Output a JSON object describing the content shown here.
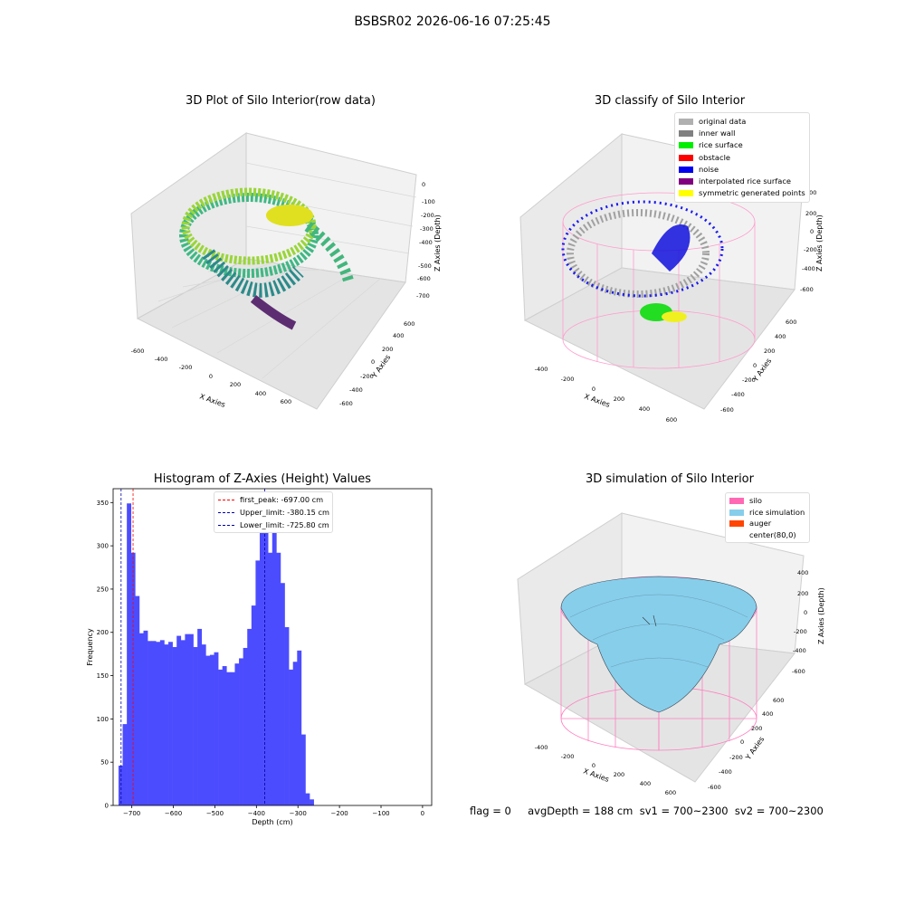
{
  "figure": {
    "suptitle": "BSBSR02 2026-06-16 07:25:45"
  },
  "panels": {
    "raw": {
      "title": "3D Plot of Silo Interior(row data)",
      "xlabel": "X Axies",
      "ylabel": "Y Axies",
      "zlabel": "Z Axies (Depth)",
      "xticks": [
        "-600",
        "-400",
        "-200",
        "0",
        "200",
        "400",
        "600"
      ],
      "yticks": [
        "-600",
        "-400",
        "-200",
        "0",
        "200",
        "400",
        "600"
      ],
      "zticks": [
        "0",
        "-100",
        "-200",
        "-300",
        "-400",
        "-500",
        "-600",
        "-700"
      ]
    },
    "classify": {
      "title": "3D classify of Silo Interior",
      "xlabel": "X Axies",
      "ylabel": "Y Axies",
      "zlabel": "Z Axies (Depth)",
      "xticks": [
        "-400",
        "-200",
        "0",
        "200",
        "400",
        "600"
      ],
      "yticks": [
        "-600",
        "-400",
        "-200",
        "0",
        "200",
        "400",
        "600"
      ],
      "zticks": [
        "400",
        "200",
        "0",
        "-200",
        "-400",
        "-600"
      ],
      "legend": [
        {
          "label": "original data",
          "color": "#b0b0b0"
        },
        {
          "label": "inner wall",
          "color": "#808080"
        },
        {
          "label": "rice surface",
          "color": "#00ee00"
        },
        {
          "label": "obstacle",
          "color": "#ff0000"
        },
        {
          "label": "noise",
          "color": "#0000ee"
        },
        {
          "label": "interpolated rice surface",
          "color": "#800080"
        },
        {
          "label": "symmetric generated points",
          "color": "#ffff00"
        }
      ]
    },
    "simulation": {
      "title": "3D simulation of Silo Interior",
      "xlabel": "X Axies",
      "ylabel": "Y Axies",
      "zlabel": "Z Axies (Depth)",
      "xticks": [
        "-400",
        "-200",
        "0",
        "200",
        "400",
        "600"
      ],
      "yticks": [
        "-600",
        "-400",
        "-200",
        "0",
        "200",
        "400",
        "600"
      ],
      "zticks": [
        "400",
        "200",
        "0",
        "-200",
        "-400",
        "-600"
      ],
      "legend": [
        {
          "label": "silo",
          "color": "#ff69b4"
        },
        {
          "label": "rice simulation",
          "color": "#87ceeb"
        },
        {
          "label": "auger",
          "color": "#ff4500"
        },
        {
          "label": "center(80,0)",
          "color": "#ffffff"
        }
      ]
    }
  },
  "status_line": "flag = 0     avgDepth = 188 cm  sv1 = 700~2300  sv2 = 700~2300",
  "chart_data": {
    "type": "bar",
    "title": "Histogram of Z-Axies (Height) Values",
    "xlabel": "Depth (cm)",
    "ylabel": "Frequency",
    "xlim": [
      -745,
      22
    ],
    "ylim": [
      0,
      366
    ],
    "xticks": [
      -700,
      -600,
      -500,
      -400,
      -300,
      -200,
      -100,
      0
    ],
    "yticks": [
      0,
      50,
      100,
      150,
      200,
      250,
      300,
      350
    ],
    "bin_start": -732,
    "bin_width": 10,
    "values": [
      46,
      94,
      349,
      292,
      242,
      199,
      202,
      190,
      190,
      189,
      191,
      186,
      189,
      183,
      196,
      191,
      198,
      198,
      183,
      204,
      186,
      173,
      174,
      177,
      157,
      161,
      154,
      154,
      164,
      170,
      182,
      204,
      231,
      283,
      343,
      331,
      292,
      318,
      292,
      257,
      206,
      157,
      166,
      179,
      82,
      14,
      7
    ],
    "bar_color": "#4c4cff",
    "vlines": [
      {
        "label": "first_peak: -697.00 cm",
        "x": -697.0,
        "color": "#ff0000"
      },
      {
        "label": "Upper_limit: -380.15 cm",
        "x": -380.15,
        "color": "#0000aa"
      },
      {
        "label": "Lower_limit: -725.80 cm",
        "x": -725.8,
        "color": "#0000aa"
      }
    ],
    "legend_position": "top-center",
    "grid": false
  }
}
